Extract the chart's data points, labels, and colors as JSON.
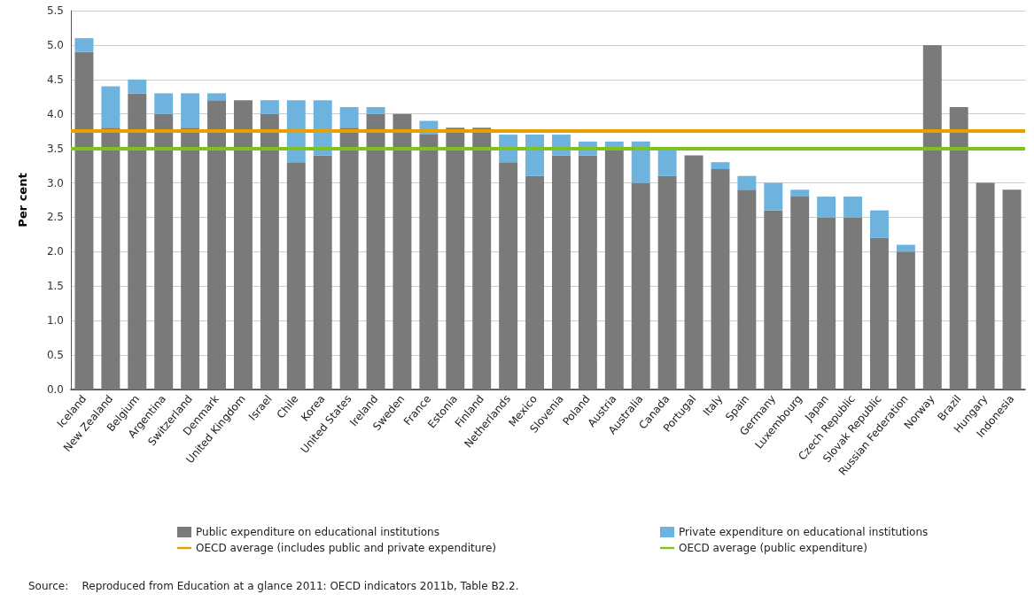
{
  "chart_data": {
    "type": "bar",
    "stacked": true,
    "ylabel": "Per cent",
    "categories": [
      "Iceland",
      "New Zealand",
      "Belgium",
      "Argentina",
      "Switzerland",
      "Denmark",
      "United Kingdom",
      "Israel",
      "Chile",
      "Korea",
      "United States",
      "Ireland",
      "Sweden",
      "France",
      "Estonia",
      "Finland",
      "Netherlands",
      "Mexico",
      "Slovenia",
      "Poland",
      "Austria",
      "Australia",
      "Canada",
      "Portugal",
      "Italy",
      "Spain",
      "Germany",
      "Luxembourg",
      "Japan",
      "Czech Republic",
      "Slovak Republic",
      "Russian Federation",
      "Norway",
      "Brazil",
      "Hungary",
      "Indonesia"
    ],
    "series": [
      {
        "name": "Public expenditure on educational institutions",
        "color": "#7a7a7a",
        "values": [
          4.9,
          3.8,
          4.3,
          4.0,
          3.8,
          4.2,
          4.2,
          4.0,
          3.3,
          3.4,
          3.8,
          4.0,
          4.0,
          3.7,
          3.8,
          3.8,
          3.3,
          3.1,
          3.4,
          3.4,
          3.5,
          3.0,
          3.1,
          3.4,
          3.2,
          2.9,
          2.6,
          2.8,
          2.5,
          2.5,
          2.2,
          2.0,
          5.0,
          4.1,
          3.0,
          2.9
        ]
      },
      {
        "name": "Private expenditure on educational institutions",
        "color": "#6db3de",
        "values": [
          0.2,
          0.6,
          0.2,
          0.3,
          0.5,
          0.1,
          0,
          0.2,
          0.9,
          0.8,
          0.3,
          0.1,
          0,
          0.2,
          0,
          0,
          0.4,
          0.6,
          0.3,
          0.2,
          0.1,
          0.6,
          0.4,
          0,
          0.1,
          0.2,
          0.4,
          0.1,
          0.3,
          0.3,
          0.4,
          0.1,
          0,
          0,
          0,
          0
        ]
      }
    ],
    "ref_lines": [
      {
        "axis": "y",
        "value": 3.75,
        "label": "OECD average (includes public and private expenditure)",
        "color": "#e8a000"
      },
      {
        "axis": "y",
        "value": 3.5,
        "label": "OECD average (public expenditure)",
        "color": "#7dc21e"
      }
    ],
    "ylim": [
      0,
      5.5
    ],
    "yticks": [
      {
        "value": 0,
        "label": "0.0"
      },
      0.5,
      {
        "value": 1,
        "label": "1.0"
      },
      1.5,
      {
        "value": 2,
        "label": "2.0"
      },
      2.5,
      {
        "value": 3,
        "label": "3.0"
      },
      3.5,
      {
        "value": 4,
        "label": "4.0"
      },
      4.5,
      {
        "value": 5,
        "label": "5.0"
      },
      5.5
    ],
    "grid": "y",
    "legend": "bottom",
    "annotations": [
      "Source:    Reproduced from Education at a glance 2011: OECD indicators 2011b, Table B2.2."
    ]
  }
}
